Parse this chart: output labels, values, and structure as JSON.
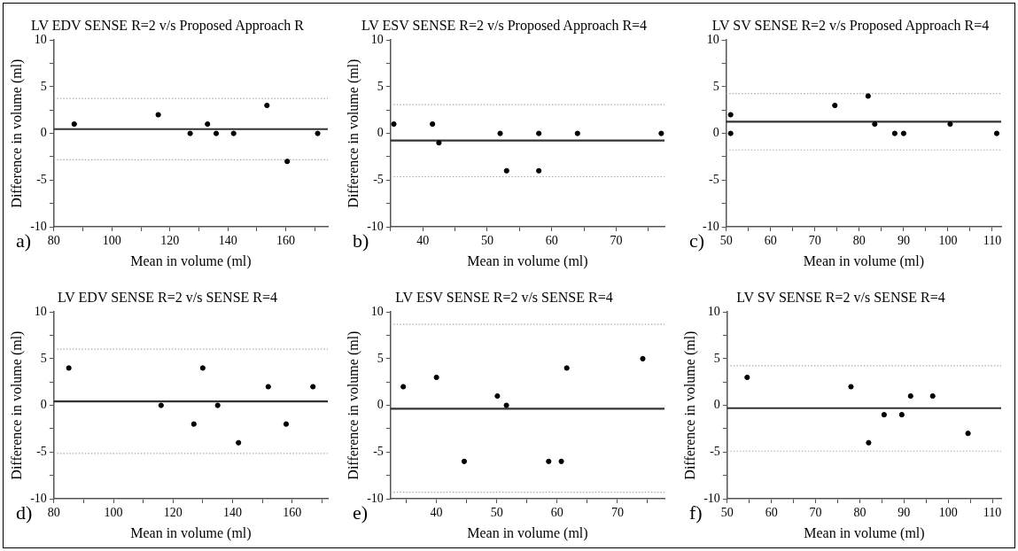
{
  "chart_data": [
    {
      "type": "scatter",
      "title": "LV EDV SENSE R=2 v/s Proposed Approach R",
      "xlabel": "Mean in volume (ml)",
      "ylabel": "Difference in volume (ml)",
      "annotations": [
        "a)"
      ],
      "series": [
        {
          "color": "#000000",
          "x": [
            87,
            116,
            127,
            133,
            136,
            142,
            153.5,
            160.5,
            171
          ],
          "values": [
            1,
            2,
            0,
            1,
            0,
            0,
            3,
            -3,
            0
          ]
        }
      ],
      "xlim": [
        80,
        174.5
      ],
      "xticks": [
        80,
        {
          "value": 90,
          "label": null
        },
        100,
        {
          "value": 110,
          "label": null
        },
        120,
        {
          "value": 130,
          "label": null
        },
        140,
        {
          "value": 150,
          "label": null
        },
        160,
        {
          "value": 170,
          "label": null
        }
      ],
      "ylim": [
        -10,
        10
      ],
      "yticks": [
        -10,
        {
          "value": -7.5,
          "label": null
        },
        -5,
        {
          "value": -2.5,
          "label": null
        },
        0,
        {
          "value": 2.5,
          "label": null
        },
        5,
        {
          "value": 7.5,
          "label": null
        },
        10
      ],
      "ref_lines": [
        {
          "axis": "y",
          "value": 0.46,
          "color": "#333333",
          "line_style": "solid"
        },
        {
          "axis": "y",
          "value": 3.75,
          "color": "#aaaaaa",
          "line_style": "dotted"
        },
        {
          "axis": "y",
          "value": -2.83,
          "color": "#aaaaaa",
          "line_style": "dotted"
        }
      ],
      "marker": "circle",
      "grid": false,
      "legend": false
    },
    {
      "type": "scatter",
      "title": "LV ESV SENSE R=2 v/s Proposed Approach R=4",
      "xlabel": "Mean in volume (ml)",
      "ylabel": "Difference in volume (ml)",
      "annotations": [
        "b)"
      ],
      "series": [
        {
          "color": "#000000",
          "x": [
            35.5,
            41.5,
            42.5,
            52,
            53,
            58,
            58,
            64,
            77
          ],
          "values": [
            1,
            1,
            -1,
            0,
            -4,
            0,
            -4,
            0,
            0
          ]
        }
      ],
      "xlim": [
        35,
        77.5
      ],
      "xticks": [
        {
          "value": 35,
          "label": null
        },
        40,
        {
          "value": 45,
          "label": null
        },
        50,
        {
          "value": 55,
          "label": null
        },
        60,
        {
          "value": 65,
          "label": null
        },
        70,
        {
          "value": 75,
          "label": null
        }
      ],
      "ylim": [
        -10,
        10
      ],
      "yticks": [
        -10,
        {
          "value": -7.5,
          "label": null
        },
        -5,
        {
          "value": -2.5,
          "label": null
        },
        0,
        {
          "value": 2.5,
          "label": null
        },
        5,
        {
          "value": 7.5,
          "label": null
        },
        10
      ],
      "ref_lines": [
        {
          "axis": "y",
          "value": -0.76,
          "color": "#333333",
          "line_style": "solid"
        },
        {
          "axis": "y",
          "value": 3.09,
          "color": "#aaaaaa",
          "line_style": "dotted"
        },
        {
          "axis": "y",
          "value": -4.64,
          "color": "#aaaaaa",
          "line_style": "dotted"
        }
      ],
      "marker": "circle",
      "grid": false,
      "legend": false
    },
    {
      "type": "scatter",
      "title": "LV SV SENSE R=2 v/s Proposed Approach R=4",
      "xlabel": "Mean in volume (ml)",
      "annotations": [
        "c)"
      ],
      "series": [
        {
          "color": "#000000",
          "x": [
            51,
            51,
            74.5,
            82,
            83.5,
            88,
            90,
            100.5,
            111
          ],
          "values": [
            2,
            0,
            3,
            4,
            1,
            0,
            0,
            1,
            0
          ]
        }
      ],
      "xlim": [
        50,
        112
      ],
      "xticks": [
        50,
        {
          "value": 55,
          "label": null
        },
        60,
        {
          "value": 65,
          "label": null
        },
        70,
        {
          "value": 75,
          "label": null
        },
        80,
        {
          "value": 85,
          "label": null
        },
        90,
        {
          "value": 95,
          "label": null
        },
        100,
        {
          "value": 105,
          "label": null
        },
        110
      ],
      "ylim": [
        -10,
        10
      ],
      "yticks": [
        -10,
        {
          "value": -7.5,
          "label": null
        },
        -5,
        {
          "value": -2.5,
          "label": null
        },
        0,
        {
          "value": 2.5,
          "label": null
        },
        5,
        {
          "value": 7.5,
          "label": null
        },
        10
      ],
      "ref_lines": [
        {
          "axis": "y",
          "value": 1.26,
          "color": "#333333",
          "line_style": "solid"
        },
        {
          "axis": "y",
          "value": 4.26,
          "color": "#aaaaaa",
          "line_style": "dotted"
        },
        {
          "axis": "y",
          "value": -1.77,
          "color": "#aaaaaa",
          "line_style": "dotted"
        }
      ],
      "marker": "circle",
      "grid": false,
      "legend": false
    },
    {
      "type": "scatter",
      "title": "LV EDV SENSE R=2 v/s SENSE R=4",
      "xlabel": "Mean in volume (ml)",
      "ylabel": "Difference in volume (ml)",
      "annotations": [
        "d)"
      ],
      "series": [
        {
          "color": "#000000",
          "x": [
            85,
            116,
            127,
            130,
            135,
            142,
            152,
            158,
            167
          ],
          "values": [
            4,
            0,
            -2,
            4,
            0,
            -4,
            2,
            -2,
            2
          ]
        }
      ],
      "xlim": [
        80,
        172
      ],
      "xticks": [
        80,
        {
          "value": 90,
          "label": null
        },
        100,
        {
          "value": 110,
          "label": null
        },
        120,
        {
          "value": 130,
          "label": null
        },
        140,
        {
          "value": 150,
          "label": null
        },
        160,
        {
          "value": 170,
          "label": null
        }
      ],
      "ylim": [
        -10,
        10
      ],
      "yticks": [
        -10,
        {
          "value": -7.5,
          "label": null
        },
        -5,
        {
          "value": -2.5,
          "label": null
        },
        0,
        {
          "value": 2.5,
          "label": null
        },
        5,
        {
          "value": 7.5,
          "label": null
        },
        10
      ],
      "ref_lines": [
        {
          "axis": "y",
          "value": 0.42,
          "color": "#333333",
          "line_style": "solid"
        },
        {
          "axis": "y",
          "value": 6.03,
          "color": "#aaaaaa",
          "line_style": "dotted"
        },
        {
          "axis": "y",
          "value": -5.15,
          "color": "#aaaaaa",
          "line_style": "dotted"
        }
      ],
      "marker": "circle",
      "grid": false,
      "legend": false
    },
    {
      "type": "scatter",
      "title": "LV ESV SENSE R=2 v/s SENSE R=4",
      "xlabel": "Mean in volume (ml)",
      "ylabel": "Difference in volume (ml)",
      "annotations": [
        "e)"
      ],
      "series": [
        {
          "color": "#000000",
          "x": [
            34.5,
            40,
            44.6,
            50.1,
            51.6,
            58.6,
            60.7,
            61.6,
            74.2
          ],
          "values": [
            2,
            3,
            -6,
            1,
            0,
            -6,
            -6,
            4,
            5
          ]
        }
      ],
      "xlim": [
        32.4,
        77.8
      ],
      "xticks": [
        {
          "value": 35,
          "label": null
        },
        40,
        {
          "value": 45,
          "label": null
        },
        50,
        {
          "value": 55,
          "label": null
        },
        60,
        {
          "value": 65,
          "label": null
        },
        70,
        {
          "value": 75,
          "label": null
        }
      ],
      "ylim": [
        -10,
        10
      ],
      "yticks": [
        -10,
        {
          "value": -7.5,
          "label": null
        },
        -5,
        {
          "value": -2.5,
          "label": null
        },
        0,
        {
          "value": 2.5,
          "label": null
        },
        5,
        {
          "value": 7.5,
          "label": null
        },
        10
      ],
      "ref_lines": [
        {
          "axis": "y",
          "value": -0.35,
          "color": "#333333",
          "line_style": "solid"
        },
        {
          "axis": "y",
          "value": 8.68,
          "color": "#aaaaaa",
          "line_style": "dotted"
        },
        {
          "axis": "y",
          "value": -9.3,
          "color": "#aaaaaa",
          "line_style": "dotted"
        }
      ],
      "marker": "circle",
      "grid": false,
      "legend": false
    },
    {
      "type": "scatter",
      "title": "LV SV SENSE R=2 v/s SENSE R=4",
      "xlabel": "Mean in volume (ml)",
      "ylabel": "Difference in volume (ml)",
      "annotations": [
        "f)"
      ],
      "series": [
        {
          "color": "#000000",
          "x": [
            54.5,
            78,
            82,
            85.5,
            89.5,
            91.5,
            96.5,
            104.5
          ],
          "values": [
            3,
            2,
            -4,
            -1,
            -1,
            1,
            1,
            -3
          ]
        }
      ],
      "xlim": [
        50,
        112
      ],
      "xticks": [
        50,
        {
          "value": 55,
          "label": null
        },
        60,
        {
          "value": 65,
          "label": null
        },
        70,
        {
          "value": 75,
          "label": null
        },
        80,
        {
          "value": 85,
          "label": null
        },
        90,
        {
          "value": 95,
          "label": null
        },
        100,
        {
          "value": 105,
          "label": null
        },
        110
      ],
      "ylim": [
        -10,
        10
      ],
      "yticks": [
        -10,
        {
          "value": -7.5,
          "label": null
        },
        -5,
        {
          "value": -2.5,
          "label": null
        },
        0,
        {
          "value": 2.5,
          "label": null
        },
        5,
        {
          "value": 7.5,
          "label": null
        },
        10
      ],
      "ref_lines": [
        {
          "axis": "y",
          "value": -0.3,
          "color": "#333333",
          "line_style": "solid"
        },
        {
          "axis": "y",
          "value": 4.24,
          "color": "#aaaaaa",
          "line_style": "dotted"
        },
        {
          "axis": "y",
          "value": -4.9,
          "color": "#aaaaaa",
          "line_style": "dotted"
        }
      ],
      "marker": "circle",
      "grid": false,
      "legend": false
    }
  ]
}
